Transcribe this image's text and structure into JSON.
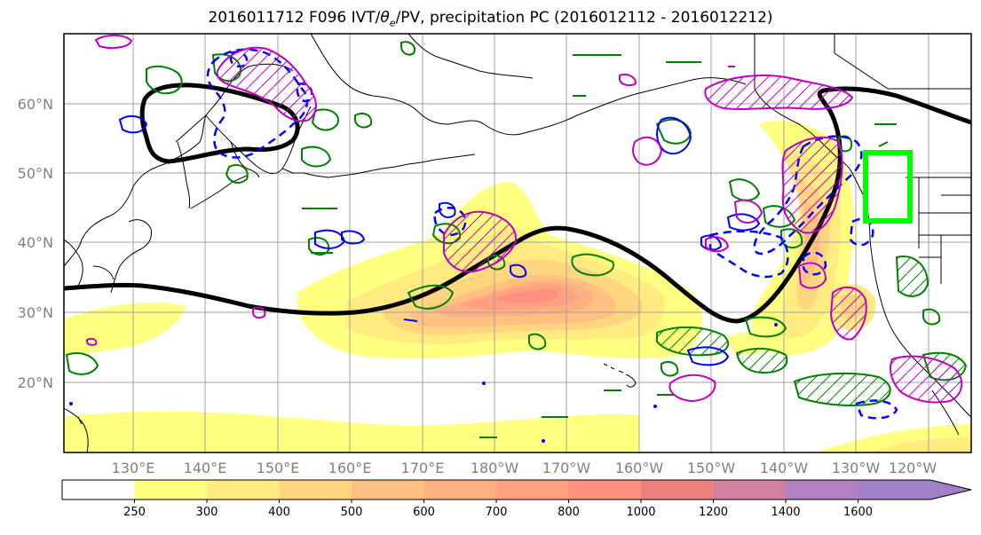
{
  "title_prefix": "2016011712 F096 IVT/",
  "title_theta": "θ",
  "title_theta_sub": "e",
  "title_suffix": "/PV, precipitation PC (2016012112 - 2016012212)",
  "lat_labels": [
    "60°N",
    "50°N",
    "40°N",
    "30°N",
    "20°N"
  ],
  "lon_labels": [
    "130°E",
    "140°E",
    "150°E",
    "160°E",
    "170°E",
    "180°W",
    "170°W",
    "160°W",
    "150°W",
    "140°W",
    "130°W",
    "120°W"
  ],
  "colorbar": {
    "levels": [
      "250",
      "300",
      "400",
      "500",
      "600",
      "700",
      "800",
      "1000",
      "1200",
      "1400",
      "1600"
    ],
    "colors": [
      "#ffffff",
      "#ffff80",
      "#ffeb80",
      "#ffd580",
      "#ffc080",
      "#ffb080",
      "#ffa080",
      "#ff9080",
      "#f08080",
      "#d080a0",
      "#b080c0",
      "#a080c8"
    ]
  },
  "colors": {
    "black_contour": "#000000",
    "green_contour": "#008000",
    "blue_contour": "#0000ff",
    "magenta_contour": "#c000c0",
    "highlight_box": "#00ff00",
    "coastline": "#000000",
    "grid": "#a0a0a0"
  }
}
